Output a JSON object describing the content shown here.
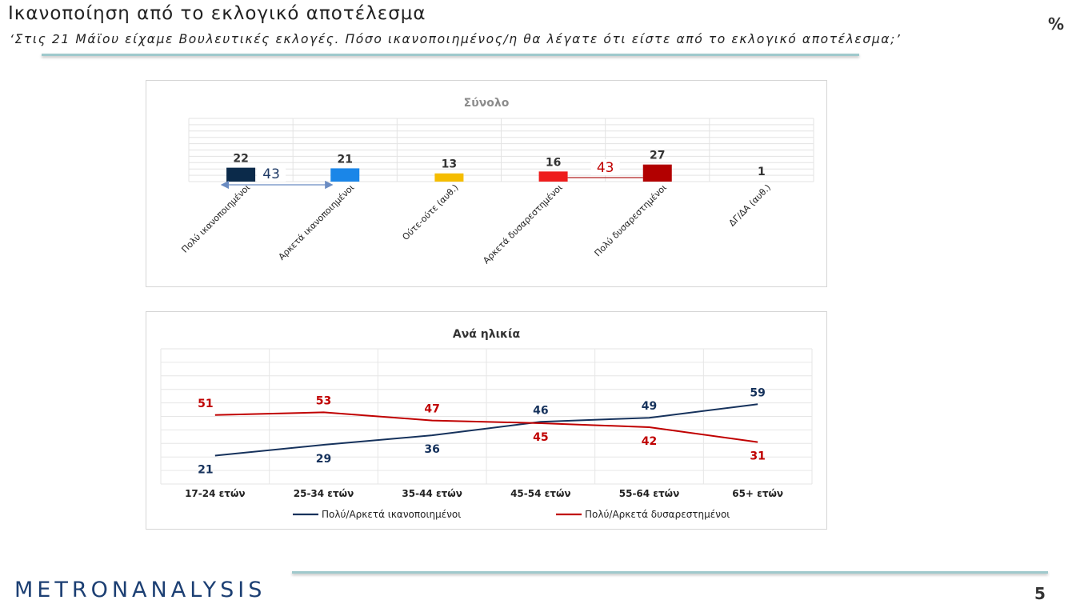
{
  "header": {
    "title": "Ικανοποίηση από το εκλογικό αποτέλεσμα",
    "subtitle": "‘Στις 21 Μάϊου είχαμε Βουλευτικές εκλογές. Πόσο ικανοποιημένος/η θα λέγατε ότι είστε από το εκλογικό αποτέλεσμα;’",
    "unit": "%"
  },
  "footer": {
    "brand": "METRONANALYSIS",
    "page": "5"
  },
  "chart_data": [
    {
      "type": "bar",
      "title": "Σύνολο",
      "categories": [
        "Πολύ ικανοποιημένοι",
        "Αρκετά ικανοποιημένοι",
        "Ούτε-ούτε (αυθ.)",
        "Αρκετά δυσαρεστημένοι",
        "Πολύ δυσαρεστημένοι",
        "ΔΓ/ΔΑ (αυθ.)"
      ],
      "values": [
        22,
        21,
        13,
        16,
        27,
        1
      ],
      "colors": [
        "#0b2a4a",
        "#1a86e8",
        "#f5bd00",
        "#ee1c1c",
        "#b20000",
        "#b0b0b0"
      ],
      "ylim": [
        0,
        100
      ],
      "annotations": [
        {
          "label": "43",
          "spans": [
            "Πολύ ικανοποιημένοι",
            "Αρκετά ικανοποιημένοι"
          ],
          "color": "#1f3a66"
        },
        {
          "label": "43",
          "spans": [
            "Αρκετά δυσαρεστημένοι",
            "Πολύ δυσαρεστημένοι"
          ],
          "color": "#c00000"
        }
      ]
    },
    {
      "type": "line",
      "title": "Ανά ηλικία",
      "categories": [
        "17-24 ετών",
        "25-34 ετών",
        "35-44 ετών",
        "45-54 ετών",
        "55-64 ετών",
        "65+ ετών"
      ],
      "ylim": [
        0,
        100
      ],
      "series": [
        {
          "name": "Πολύ/Αρκετά ικανοποιημένοι",
          "values": [
            21,
            29,
            36,
            46,
            49,
            59
          ],
          "color": "#16325c"
        },
        {
          "name": "Πολύ/Αρκετά δυσαρεστημένοι",
          "values": [
            51,
            53,
            47,
            45,
            42,
            31
          ],
          "color": "#c00000"
        }
      ]
    }
  ]
}
